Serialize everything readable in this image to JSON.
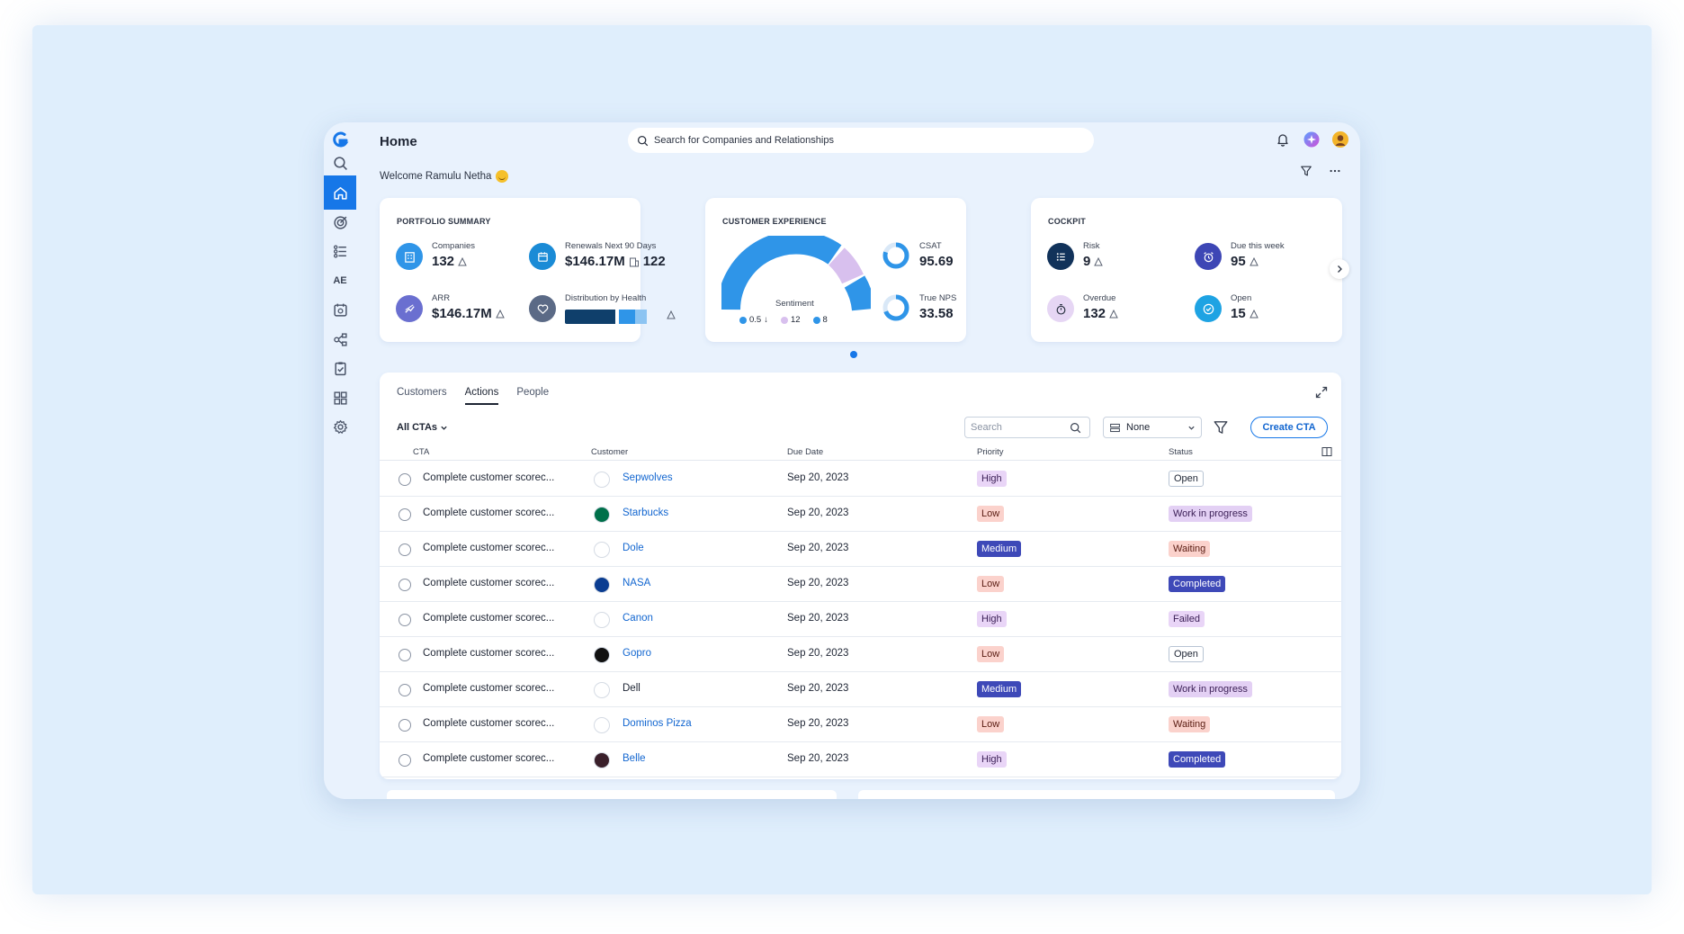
{
  "header": {
    "title": "Home",
    "search_placeholder": "Search for Companies and Relationships",
    "welcome": "Welcome Ramulu Netha"
  },
  "sidebar": {
    "items": [
      {
        "name": "search-icon"
      },
      {
        "name": "home-icon",
        "active": true
      },
      {
        "name": "target-icon"
      },
      {
        "name": "timeline-icon"
      },
      {
        "name": "ae",
        "label": "AE"
      },
      {
        "name": "calendar-icon"
      },
      {
        "name": "relationships-icon"
      },
      {
        "name": "clipboard-check-icon"
      },
      {
        "name": "dashboard-grid-icon"
      },
      {
        "name": "gear-icon"
      }
    ]
  },
  "portfolio": {
    "title": "PORTFOLIO SUMMARY",
    "companies_label": "Companies",
    "companies_value": "132",
    "renewals_label": "Renewals Next 90 Days",
    "renewals_value": "$146.17M",
    "renewals_count": "122",
    "arr_label": "ARR",
    "arr_value": "$146.17M",
    "health_label": "Distribution by Health",
    "health_segments": [
      {
        "share": 0.52,
        "color": "#0f3f6b"
      },
      {
        "share": 0.04,
        "color": "#ffffff"
      },
      {
        "share": 0.16,
        "color": "#2f95e8"
      },
      {
        "share": 0.12,
        "color": "#8cc4f2"
      }
    ]
  },
  "customer_experience": {
    "title": "CUSTOMER EXPERIENCE",
    "sentiment_label": "Sentiment",
    "legend": [
      {
        "value": "0.5",
        "color": "#2f95e8",
        "trend": "down"
      },
      {
        "value": "12",
        "color": "#d8c0ee"
      },
      {
        "value": "8",
        "color": "#2f95e8"
      }
    ],
    "csat_label": "CSAT",
    "csat_value": "95.69",
    "nps_label": "True NPS",
    "nps_value": "33.58"
  },
  "cockpit": {
    "title": "COCKPIT",
    "risk_label": "Risk",
    "risk_value": "9",
    "due_label": "Due this week",
    "due_value": "95",
    "overdue_label": "Overdue",
    "overdue_value": "132",
    "open_label": "Open",
    "open_value": "15"
  },
  "tabs": [
    {
      "label": "Customers"
    },
    {
      "label": "Actions",
      "active": true
    },
    {
      "label": "People"
    }
  ],
  "toolbar": {
    "all_ctas": "All CTAs",
    "search_placeholder": "Search",
    "group_value": "None",
    "create_label": "Create CTA"
  },
  "columns": {
    "cta": "CTA",
    "customer": "Customer",
    "due": "Due Date",
    "priority": "Priority",
    "status": "Status"
  },
  "rows": [
    {
      "cta": "Complete customer scorec...",
      "customer": "Sepwolves",
      "logo_color": "#ffffff",
      "logo_fg": "#555",
      "due": "Sep 20, 2023",
      "priority": "High",
      "pclass": "p-high",
      "status": "Open",
      "sclass": "s-open",
      "link": true
    },
    {
      "cta": "Complete customer scorec...",
      "customer": "Starbucks",
      "logo_color": "#00704a",
      "logo_fg": "#fff",
      "due": "Sep 20, 2023",
      "priority": "Low",
      "pclass": "p-low",
      "status": "Work in progress",
      "sclass": "s-wip",
      "link": true
    },
    {
      "cta": "Complete customer scorec...",
      "customer": "Dole",
      "logo_color": "#ffffff",
      "logo_fg": "#d8262f",
      "due": "Sep 20, 2023",
      "priority": "Medium",
      "pclass": "p-medium",
      "status": "Waiting",
      "sclass": "s-waiting",
      "link": true
    },
    {
      "cta": "Complete customer scorec...",
      "customer": "NASA",
      "logo_color": "#0b3d91",
      "logo_fg": "#fff",
      "due": "Sep 20, 2023",
      "priority": "Low",
      "pclass": "p-low",
      "status": "Completed",
      "sclass": "s-completed",
      "link": true
    },
    {
      "cta": "Complete customer scorec...",
      "customer": "Canon",
      "logo_color": "#ffffff",
      "logo_fg": "#cc0000",
      "due": "Sep 20, 2023",
      "priority": "High",
      "pclass": "p-high",
      "status": "Failed",
      "sclass": "s-failed",
      "link": true
    },
    {
      "cta": "Complete customer scorec...",
      "customer": "Gopro",
      "logo_color": "#111111",
      "logo_fg": "#fff",
      "due": "Sep 20, 2023",
      "priority": "Low",
      "pclass": "p-low",
      "status": "Open",
      "sclass": "s-open",
      "link": true
    },
    {
      "cta": "Complete customer scorec...",
      "customer": "Dell",
      "logo_color": "#ffffff",
      "logo_fg": "#0076ce",
      "due": "Sep 20, 2023",
      "priority": "Medium",
      "pclass": "p-medium",
      "status": "Work in progress",
      "sclass": "s-wip",
      "link": false
    },
    {
      "cta": "Complete customer scorec...",
      "customer": "Dominos Pizza",
      "logo_color": "#ffffff",
      "logo_fg": "#e31837",
      "due": "Sep 20, 2023",
      "priority": "Low",
      "pclass": "p-low",
      "status": "Waiting",
      "sclass": "s-waiting",
      "link": true
    },
    {
      "cta": "Complete customer scorec...",
      "customer": "Belle",
      "logo_color": "#3a1f2a",
      "logo_fg": "#fff",
      "due": "Sep 20, 2023",
      "priority": "High",
      "pclass": "p-high",
      "status": "Completed",
      "sclass": "s-completed",
      "link": true
    }
  ]
}
